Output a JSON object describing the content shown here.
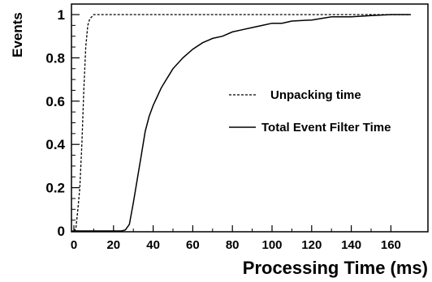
{
  "chart_data": {
    "type": "line",
    "title": "",
    "xlabel": "Processing Time (ms)",
    "ylabel": "Events",
    "xlim": [
      0,
      170
    ],
    "ylim": [
      0,
      1.05
    ],
    "x_ticks": [
      0,
      20,
      40,
      60,
      80,
      100,
      120,
      140,
      160
    ],
    "y_ticks": [
      0,
      0.2,
      0.4,
      0.6,
      0.8,
      1
    ],
    "x_tick_labels": [
      "0",
      "20",
      "40",
      "60",
      "80",
      "100",
      "120",
      "140",
      "160"
    ],
    "y_tick_labels": [
      "0",
      "0.2",
      "0.4",
      "0.6",
      "0.8",
      "1"
    ],
    "grid": false,
    "legend_position": "right",
    "series": [
      {
        "name": "Unpacking time",
        "style": "dashed",
        "color": "#000000",
        "x": [
          0,
          1,
          2,
          3,
          4,
          5,
          6,
          7,
          8,
          9,
          10,
          20,
          60,
          100,
          140,
          170
        ],
        "y": [
          0,
          0.01,
          0.1,
          0.2,
          0.4,
          0.65,
          0.85,
          0.95,
          0.98,
          0.99,
          1.0,
          1.0,
          1.0,
          1.0,
          1.0,
          1.0
        ]
      },
      {
        "name": "Total Event Filter Time",
        "style": "solid",
        "color": "#000000",
        "x": [
          0,
          20,
          24,
          26,
          28,
          30,
          32,
          34,
          36,
          38,
          40,
          42,
          44,
          46,
          48,
          50,
          55,
          60,
          65,
          70,
          75,
          80,
          85,
          90,
          95,
          100,
          105,
          110,
          120,
          130,
          140,
          150,
          160,
          170
        ],
        "y": [
          0,
          0,
          0.0,
          0.005,
          0.03,
          0.13,
          0.24,
          0.35,
          0.46,
          0.53,
          0.58,
          0.62,
          0.66,
          0.69,
          0.72,
          0.75,
          0.8,
          0.84,
          0.87,
          0.89,
          0.9,
          0.92,
          0.93,
          0.94,
          0.95,
          0.96,
          0.96,
          0.97,
          0.975,
          0.99,
          0.99,
          0.995,
          1.0,
          1.0
        ]
      }
    ]
  }
}
